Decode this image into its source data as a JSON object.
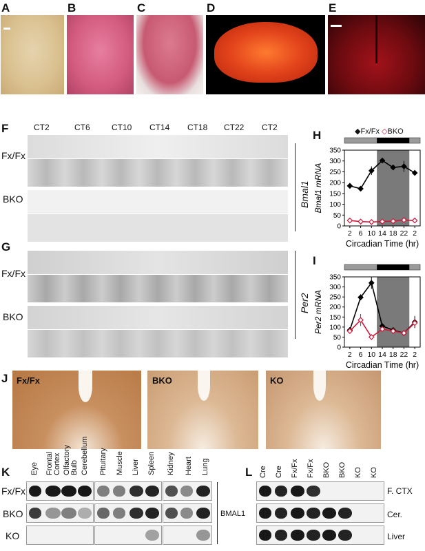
{
  "panels": {
    "A": "A",
    "B": "B",
    "C": "C",
    "D": "D",
    "E": "E",
    "F": "F",
    "G": "G",
    "H": "H",
    "I": "I",
    "J": "J",
    "K": "K",
    "L": "L"
  },
  "ct_headers": [
    "CT2",
    "CT6",
    "CT10",
    "CT14",
    "CT18",
    "CT22",
    "CT2"
  ],
  "genotypes": {
    "fxfx": "Fx/Fx",
    "bko": "BKO",
    "ko": "KO"
  },
  "gene_labels": {
    "bmal1": "Bmal1",
    "per2": "Per2"
  },
  "chart_data": [
    {
      "type": "line",
      "panel": "H",
      "xlabel": "Circadian Time (hr)",
      "ylabel": "Bmal1 mRNA",
      "x_ticks": [
        "2",
        "6",
        "10",
        "14",
        "18",
        "22",
        "2"
      ],
      "x": [
        2,
        6,
        10,
        14,
        18,
        22,
        26
      ],
      "ylim": [
        0,
        350
      ],
      "y_ticks": [
        0,
        50,
        100,
        150,
        200,
        250,
        300,
        350
      ],
      "shaded_x": [
        12,
        24
      ],
      "series": [
        {
          "name": "Fx/Fx",
          "color": "#000000",
          "marker": "filled-diamond",
          "values": [
            185,
            172,
            255,
            302,
            270,
            275,
            245
          ],
          "errors": [
            12,
            6,
            20,
            6,
            8,
            25,
            10
          ]
        },
        {
          "name": "BKO",
          "color": "#d11a3a",
          "marker": "open-diamond",
          "values": [
            25,
            20,
            18,
            20,
            22,
            27,
            25
          ],
          "errors": [
            3,
            3,
            3,
            3,
            3,
            3,
            3
          ]
        }
      ]
    },
    {
      "type": "line",
      "panel": "I",
      "xlabel": "Circadian Time (hr)",
      "ylabel": "Per2 mRNA",
      "x_ticks": [
        "2",
        "6",
        "10",
        "14",
        "18",
        "22",
        "2"
      ],
      "x": [
        2,
        6,
        10,
        14,
        18,
        22,
        26
      ],
      "ylim": [
        0,
        350
      ],
      "y_ticks": [
        0,
        50,
        100,
        150,
        200,
        250,
        300,
        350
      ],
      "shaded_x": [
        12,
        24
      ],
      "series": [
        {
          "name": "Fx/Fx",
          "color": "#000000",
          "marker": "filled-diamond",
          "values": [
            85,
            248,
            320,
            105,
            85,
            70,
            125
          ],
          "errors": [
            10,
            15,
            30,
            10,
            8,
            8,
            30
          ]
        },
        {
          "name": "BKO",
          "color": "#d11a3a",
          "marker": "open-diamond",
          "values": [
            80,
            135,
            50,
            90,
            80,
            70,
            120
          ],
          "errors": [
            10,
            30,
            6,
            8,
            6,
            8,
            20
          ]
        }
      ]
    }
  ],
  "tissues": {
    "group1": [
      "Eye",
      "Frontal Cortex",
      "Olfactory Bulb",
      "Cerebellum"
    ],
    "group2": [
      "Pituitary",
      "Muscle",
      "Liver",
      "Spleen"
    ],
    "group3": [
      "Kidney",
      "Heart",
      "Lung"
    ]
  },
  "blot_target": "BMAL1",
  "lanes_L": [
    "Cre",
    "Cre",
    "Fx/Fx",
    "Fx/Fx",
    "BKO",
    "BKO",
    "KO",
    "KO"
  ],
  "tissue_rows_L": [
    "F. CTX",
    "Cer.",
    "Liver"
  ],
  "colors": {
    "fxfx": "#000000",
    "bko": "#d11a3a",
    "shade": "#7a7a7a",
    "ihc": "#b97a45"
  }
}
